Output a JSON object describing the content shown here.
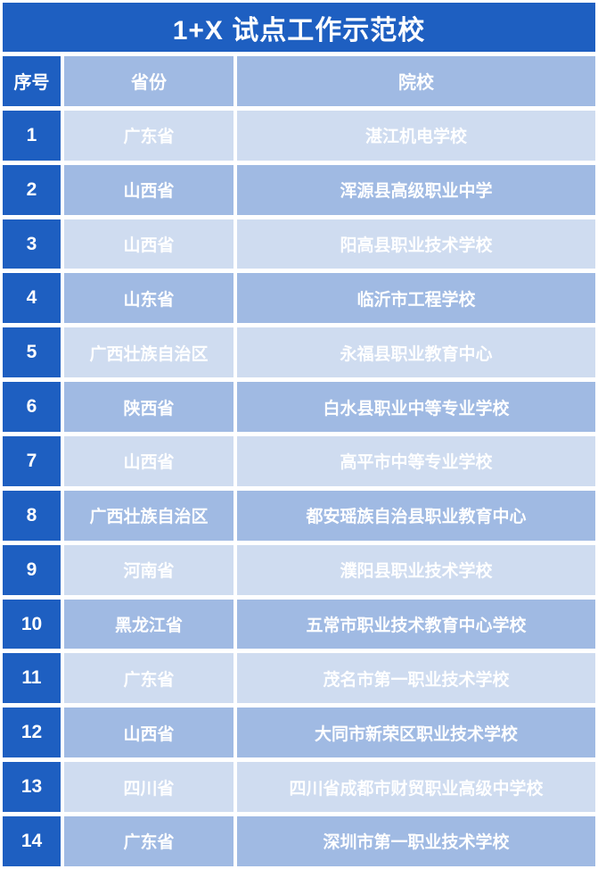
{
  "title": "1+X 试点工作示范校",
  "colors": {
    "primary_blue": "#1e5fc1",
    "row_even": "#a0bae3",
    "row_odd": "#cfdcf0",
    "text": "#ffffff"
  },
  "table": {
    "columns": [
      "序号",
      "省份",
      "院校"
    ],
    "rows": [
      {
        "no": "1",
        "province": "广东省",
        "school": "湛江机电学校"
      },
      {
        "no": "2",
        "province": "山西省",
        "school": "浑源县高级职业中学"
      },
      {
        "no": "3",
        "province": "山西省",
        "school": "阳高县职业技术学校"
      },
      {
        "no": "4",
        "province": "山东省",
        "school": "临沂市工程学校"
      },
      {
        "no": "5",
        "province": "广西壮族自治区",
        "school": "永福县职业教育中心"
      },
      {
        "no": "6",
        "province": "陕西省",
        "school": "白水县职业中等专业学校"
      },
      {
        "no": "7",
        "province": "山西省",
        "school": "高平市中等专业学校"
      },
      {
        "no": "8",
        "province": "广西壮族自治区",
        "school": "都安瑶族自治县职业教育中心"
      },
      {
        "no": "9",
        "province": "河南省",
        "school": "濮阳县职业技术学校"
      },
      {
        "no": "10",
        "province": "黑龙江省",
        "school": "五常市职业技术教育中心学校"
      },
      {
        "no": "11",
        "province": "广东省",
        "school": "茂名市第一职业技术学校"
      },
      {
        "no": "12",
        "province": "山西省",
        "school": "大同市新荣区职业技术学校"
      },
      {
        "no": "13",
        "province": "四川省",
        "school": "四川省成都市财贸职业高级中学校"
      },
      {
        "no": "14",
        "province": "广东省",
        "school": "深圳市第一职业技术学校"
      }
    ]
  }
}
